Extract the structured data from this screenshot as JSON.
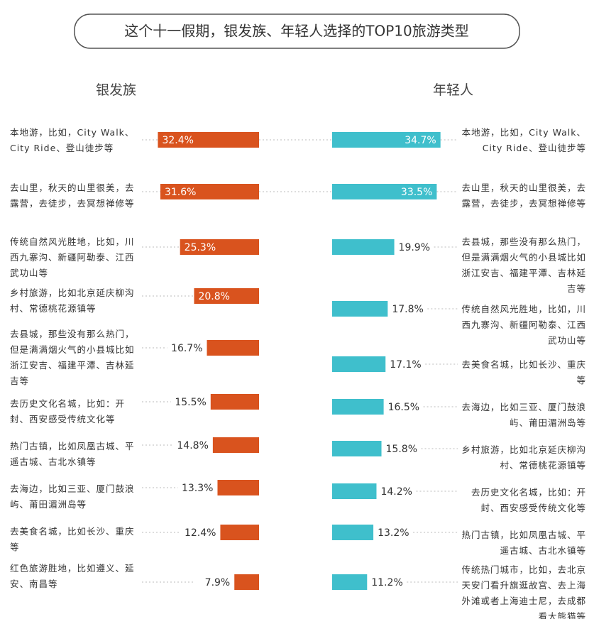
{
  "title": "这个十一假期，银发族、年轻人选择的TOP10旅游类型",
  "chart_data": [
    {
      "type": "bar",
      "title": "银发族",
      "color": "#d9531e",
      "categories": [
        "本地游，比如，City Walk、City Ride、登山徒步等",
        "去山里，秋天的山里很美，去露营，去徒步，去冥想禅修等",
        "传统自然风光胜地，比如，川西九寨沟、新疆阿勒泰、江西武功山等",
        "乡村旅游，比如北京延庆柳沟村、常德桃花源镇等",
        "去县城，那些没有那么热门，但是满满烟火气的小县城比如浙江安吉、福建平潭、吉林延吉等",
        "去历史文化名城，比如：开封、西安感受传统文化等",
        "热门古镇，比如凤凰古城、平遥古城、古北水镇等",
        "去海边，比如三亚、厦门鼓浪屿、莆田湄洲岛等",
        "去美食名城，比如长沙、重庆等",
        "红色旅游胜地，比如遵义、延安、南昌等"
      ],
      "values": [
        32.4,
        31.6,
        25.3,
        20.8,
        16.7,
        15.5,
        14.8,
        13.3,
        12.4,
        7.9
      ],
      "value_labels": [
        "32.4%",
        "31.6%",
        "25.3%",
        "20.8%",
        "16.7%",
        "15.5%",
        "14.8%",
        "13.3%",
        "12.4%",
        "7.9%"
      ]
    },
    {
      "type": "bar",
      "title": "年轻人",
      "color": "#3fbfcc",
      "categories": [
        "本地游，比如，City Walk、City Ride、登山徒步等",
        "去山里，秋天的山里很美，去露营，去徒步，去冥想禅修等",
        "去县城，那些没有那么热门，但是满满烟火气的小县城比如浙江安吉、福建平潭、吉林延吉等",
        "传统自然风光胜地，比如，川西九寨沟、新疆阿勒泰、江西武功山等",
        "去美食名城，比如长沙、重庆等",
        "去海边，比如三亚、厦门鼓浪屿、莆田湄洲岛等",
        "乡村旅游，比如北京延庆柳沟村、常德桃花源镇等",
        "去历史文化名城，比如：开封、西安感受传统文化等",
        "热门古镇，比如凤凰古城、平遥古城、古北水镇等",
        "传统热门城市，比如，去北京天安门看升旗逛故宫、去上海外滩或者上海迪士尼，去成都看大熊猫等"
      ],
      "values": [
        34.7,
        33.5,
        19.9,
        17.8,
        17.1,
        16.5,
        15.8,
        14.2,
        13.2,
        11.2
      ],
      "value_labels": [
        "34.7%",
        "33.5%",
        "19.9%",
        "17.8%",
        "17.1%",
        "16.5%",
        "15.8%",
        "14.2%",
        "13.2%",
        "11.2%"
      ]
    }
  ]
}
